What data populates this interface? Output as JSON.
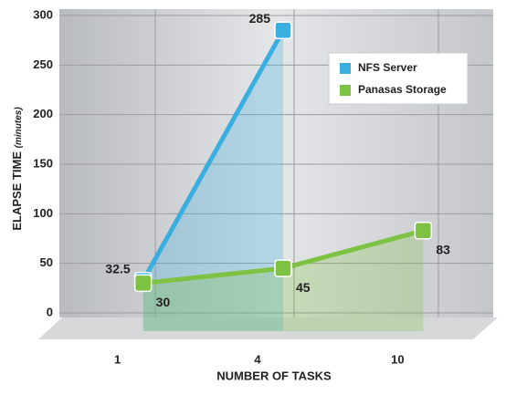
{
  "chart_data": {
    "type": "line",
    "y_label": "ELAPSE TIME",
    "y_label_unit": "(minutes)",
    "x_label": "NUMBER OF TASKS",
    "categories": [
      "1",
      "4",
      "10"
    ],
    "series": [
      {
        "name": "NFS Server",
        "color": "#3aaee0",
        "values": [
          32.5,
          285,
          null
        ]
      },
      {
        "name": "Panasas Storage",
        "color": "#7dc242",
        "values": [
          30,
          45,
          83
        ]
      }
    ],
    "ylim": [
      0,
      300
    ],
    "yticks": [
      0,
      50,
      100,
      150,
      200,
      250,
      300
    ],
    "grid": true,
    "legend": "top-right"
  }
}
